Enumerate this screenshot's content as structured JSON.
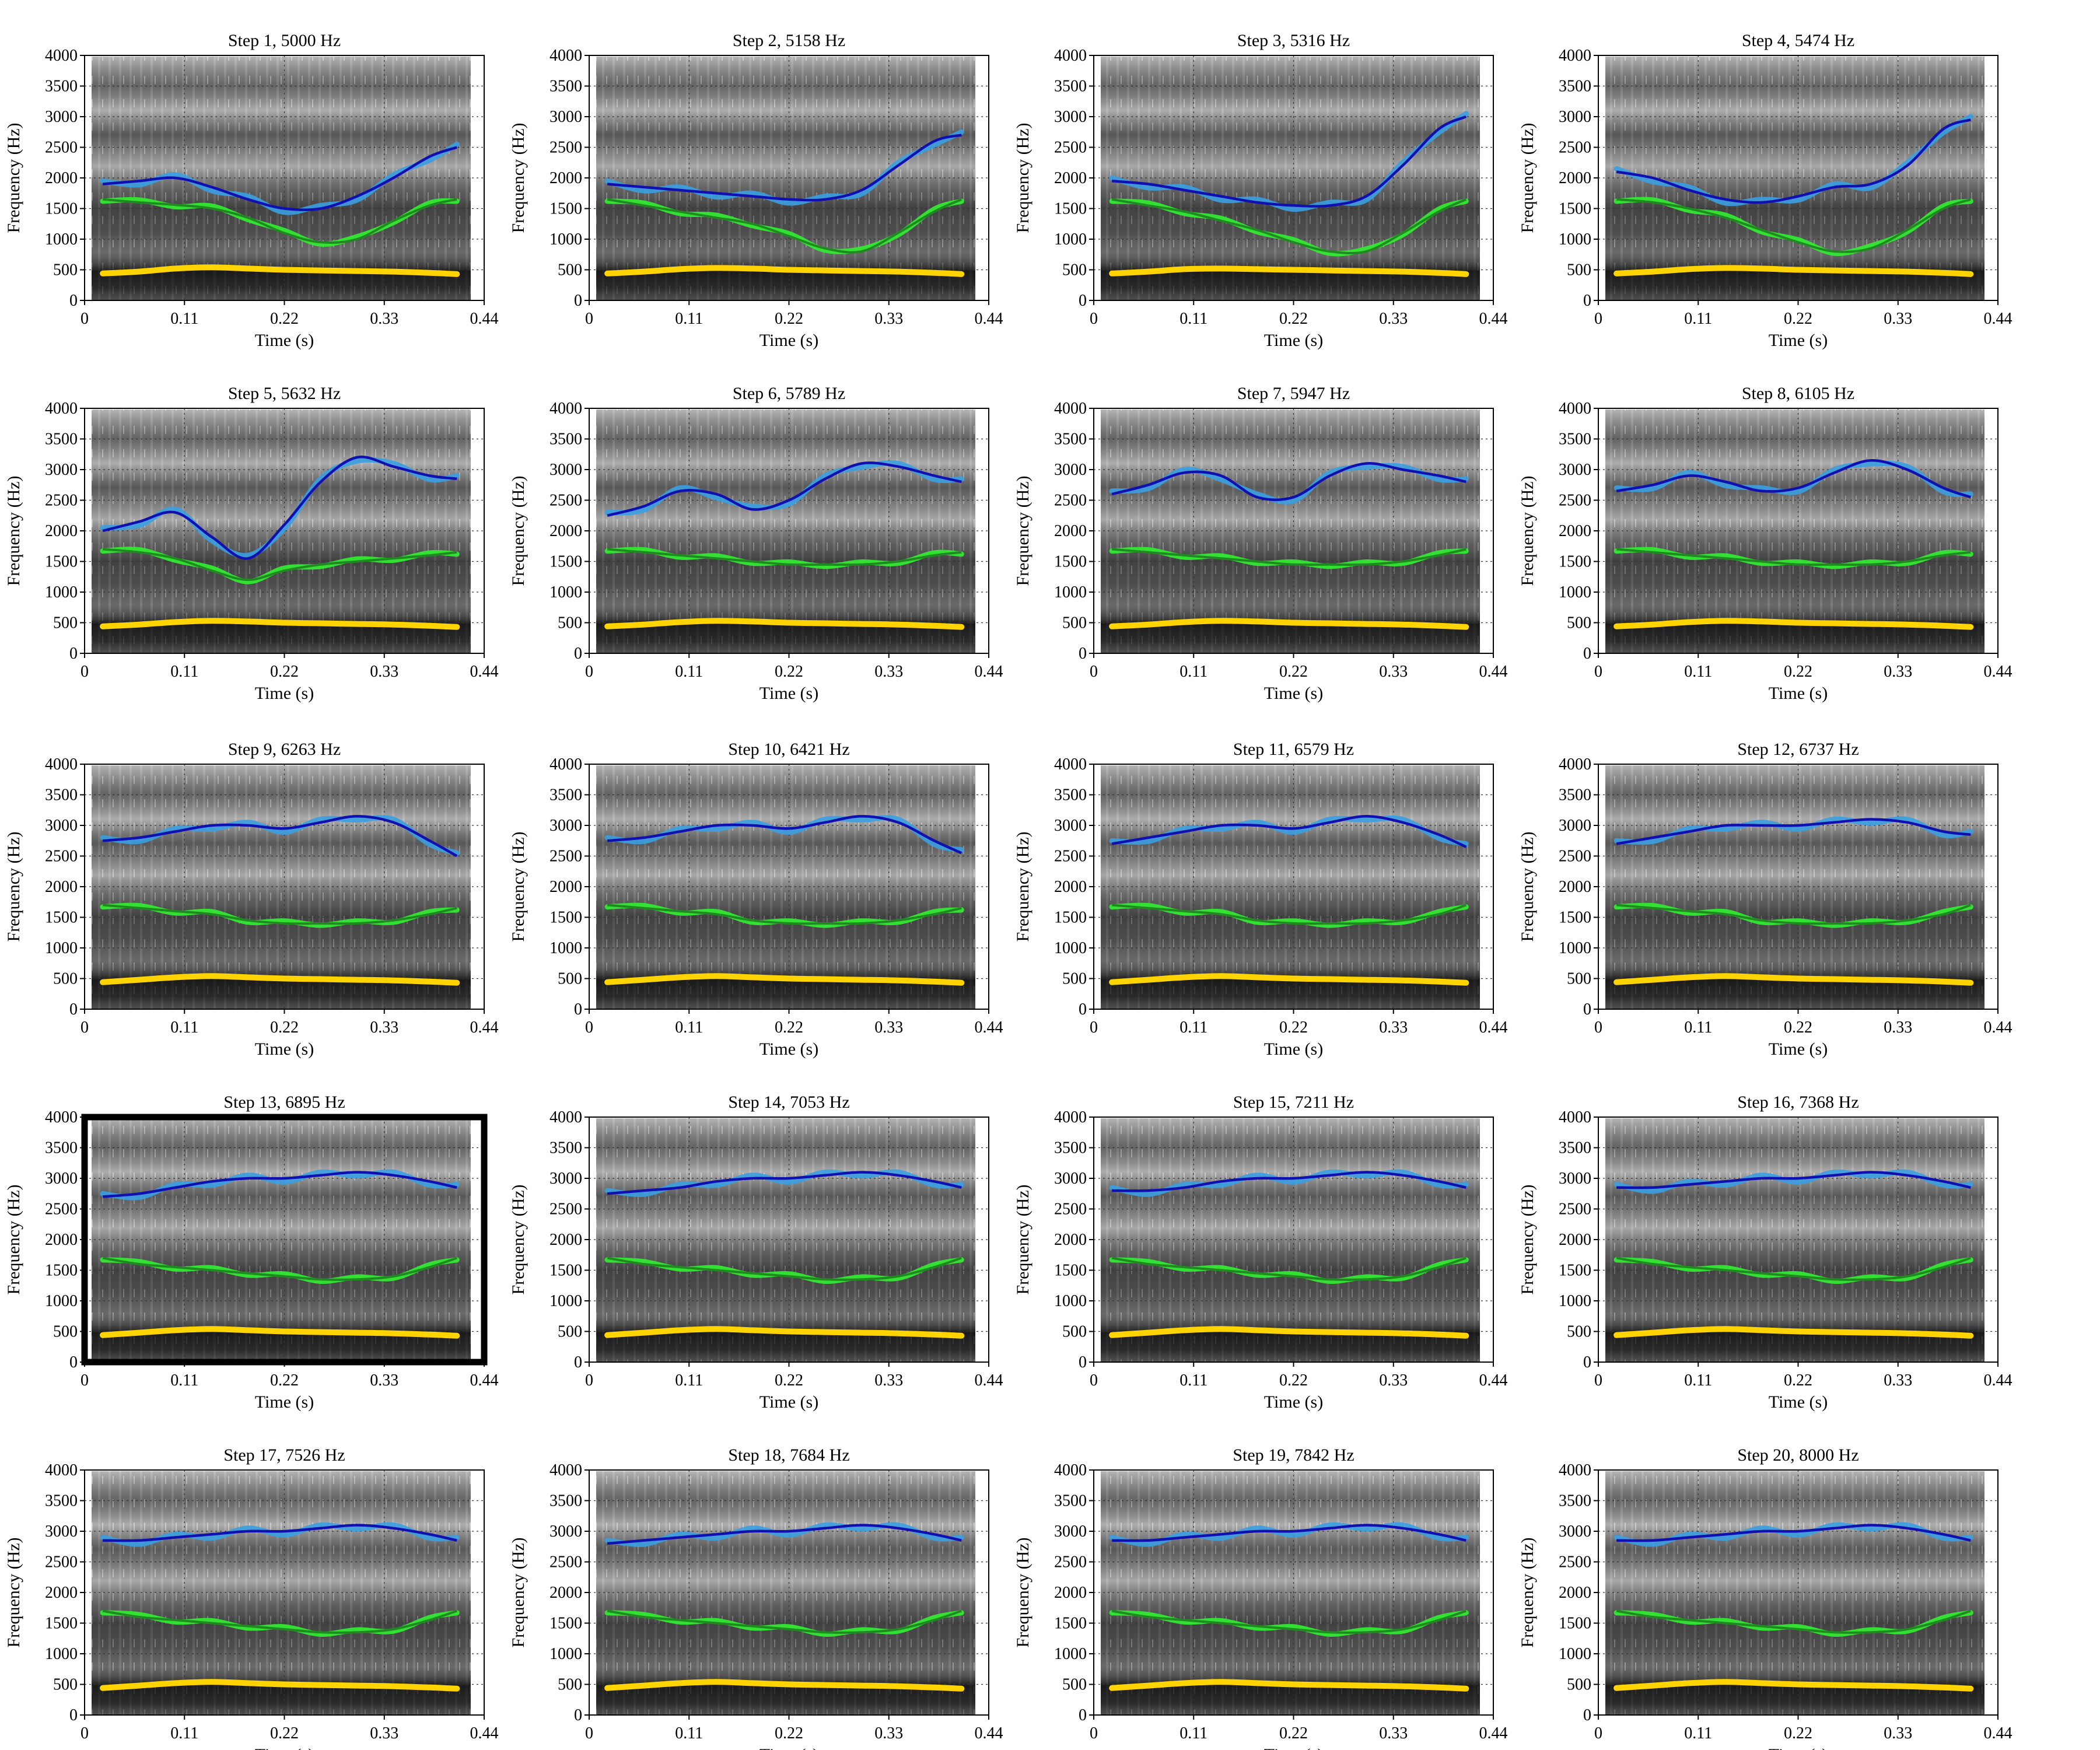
{
  "chart_data": {
    "type": "line",
    "description_axes": {
      "xlabel": "Time (s)",
      "ylabel": "Frequency (Hz)",
      "xlim": [
        0,
        0.44
      ],
      "ylim": [
        0,
        4000
      ],
      "xticks": [
        "0",
        "0.11",
        "0.22",
        "0.33",
        "0.44"
      ],
      "yticks": [
        "0",
        "500",
        "1000",
        "1500",
        "2000",
        "2500",
        "3000",
        "3500",
        "4000"
      ],
      "grid": true
    },
    "time": [
      0.02,
      0.06,
      0.1,
      0.14,
      0.18,
      0.22,
      0.26,
      0.3,
      0.34,
      0.38,
      0.41
    ],
    "selected_panel": 13,
    "colors": {
      "f1": "#ffd400",
      "f2_track": "#33e833",
      "f2_smooth": "#1f8a1f",
      "f3_track": "#3a9fe0",
      "f3_smooth": "#1010b0",
      "selected_frame": "#000000"
    },
    "panels": [
      {
        "title": "Step 1, 5000 Hz",
        "f1": [
          440,
          470,
          520,
          540,
          520,
          500,
          490,
          480,
          470,
          450,
          430
        ],
        "f2": [
          1650,
          1600,
          1560,
          1500,
          1350,
          1100,
          950,
          1000,
          1300,
          1550,
          1650
        ],
        "f3": [
          1900,
          1950,
          2000,
          1850,
          1650,
          1500,
          1500,
          1700,
          2000,
          2350,
          2500
        ]
      },
      {
        "title": "Step 2, 5158 Hz",
        "f1": [
          440,
          470,
          510,
          530,
          520,
          500,
          490,
          480,
          470,
          450,
          430
        ],
        "f2": [
          1650,
          1550,
          1450,
          1350,
          1250,
          1050,
          850,
          800,
          1100,
          1450,
          1650
        ],
        "f3": [
          1900,
          1850,
          1800,
          1750,
          1700,
          1650,
          1650,
          1800,
          2200,
          2600,
          2700
        ]
      },
      {
        "title": "Step 3, 5316 Hz",
        "f1": [
          440,
          470,
          510,
          520,
          510,
          500,
          490,
          480,
          470,
          450,
          430
        ],
        "f2": [
          1650,
          1550,
          1450,
          1300,
          1150,
          950,
          800,
          800,
          1100,
          1450,
          1650
        ],
        "f3": [
          1950,
          1900,
          1800,
          1700,
          1600,
          1550,
          1550,
          1700,
          2200,
          2800,
          3000
        ]
      },
      {
        "title": "Step 4, 5474 Hz",
        "f1": [
          440,
          470,
          510,
          530,
          520,
          500,
          490,
          480,
          470,
          450,
          430
        ],
        "f2": [
          1650,
          1600,
          1500,
          1350,
          1150,
          950,
          800,
          850,
          1150,
          1500,
          1650
        ],
        "f3": [
          2100,
          2000,
          1800,
          1650,
          1600,
          1700,
          1850,
          1900,
          2200,
          2800,
          2950
        ]
      },
      {
        "title": "Step 5, 5632 Hz",
        "f1": [
          440,
          470,
          510,
          530,
          520,
          500,
          490,
          480,
          470,
          450,
          430
        ],
        "f2": [
          1700,
          1650,
          1550,
          1350,
          1200,
          1350,
          1450,
          1500,
          1550,
          1600,
          1650
        ],
        "f3": [
          2000,
          2150,
          2300,
          1900,
          1550,
          2100,
          2800,
          3200,
          3050,
          2900,
          2850
        ]
      },
      {
        "title": "Step 6, 5789 Hz",
        "f1": [
          440,
          470,
          510,
          530,
          520,
          500,
          490,
          480,
          470,
          450,
          430
        ],
        "f2": [
          1700,
          1650,
          1600,
          1550,
          1500,
          1450,
          1450,
          1450,
          1500,
          1600,
          1650
        ],
        "f3": [
          2250,
          2400,
          2650,
          2600,
          2350,
          2500,
          2850,
          3100,
          3050,
          2900,
          2800
        ]
      },
      {
        "title": "Step 7, 5947 Hz",
        "f1": [
          440,
          470,
          510,
          530,
          520,
          500,
          490,
          480,
          470,
          450,
          430
        ],
        "f2": [
          1700,
          1650,
          1600,
          1550,
          1500,
          1450,
          1450,
          1450,
          1500,
          1600,
          1700
        ],
        "f3": [
          2600,
          2750,
          2950,
          2900,
          2550,
          2550,
          2900,
          3100,
          3000,
          2900,
          2800
        ]
      },
      {
        "title": "Step 8, 6105 Hz",
        "f1": [
          440,
          470,
          510,
          530,
          520,
          500,
          490,
          480,
          470,
          450,
          430
        ],
        "f2": [
          1700,
          1650,
          1600,
          1550,
          1500,
          1450,
          1450,
          1450,
          1500,
          1600,
          1650
        ],
        "f3": [
          2650,
          2750,
          2900,
          2800,
          2650,
          2700,
          2950,
          3150,
          3000,
          2700,
          2550
        ]
      },
      {
        "title": "Step 9, 6263 Hz",
        "f1": [
          440,
          480,
          520,
          540,
          520,
          500,
          490,
          480,
          470,
          450,
          430
        ],
        "f2": [
          1700,
          1650,
          1600,
          1550,
          1450,
          1400,
          1400,
          1400,
          1450,
          1550,
          1650
        ],
        "f3": [
          2750,
          2800,
          2900,
          3000,
          3000,
          2950,
          3050,
          3150,
          3050,
          2750,
          2500
        ]
      },
      {
        "title": "Step 10, 6421 Hz",
        "f1": [
          440,
          480,
          520,
          540,
          520,
          500,
          490,
          480,
          470,
          450,
          430
        ],
        "f2": [
          1700,
          1650,
          1600,
          1550,
          1450,
          1400,
          1400,
          1400,
          1450,
          1550,
          1650
        ],
        "f3": [
          2750,
          2800,
          2900,
          3000,
          3000,
          2950,
          3050,
          3150,
          3050,
          2750,
          2550
        ]
      },
      {
        "title": "Step 11, 6579 Hz",
        "f1": [
          440,
          480,
          520,
          540,
          520,
          500,
          490,
          480,
          470,
          450,
          430
        ],
        "f2": [
          1700,
          1650,
          1600,
          1550,
          1450,
          1400,
          1400,
          1400,
          1450,
          1550,
          1700
        ],
        "f3": [
          2700,
          2800,
          2900,
          3000,
          3000,
          2950,
          3050,
          3150,
          3050,
          2850,
          2650
        ]
      },
      {
        "title": "Step 12, 6737 Hz",
        "f1": [
          440,
          480,
          520,
          540,
          520,
          500,
          490,
          480,
          470,
          450,
          430
        ],
        "f2": [
          1700,
          1650,
          1600,
          1550,
          1450,
          1400,
          1400,
          1400,
          1450,
          1550,
          1700
        ],
        "f3": [
          2700,
          2800,
          2900,
          3000,
          3000,
          3000,
          3050,
          3100,
          3050,
          2900,
          2850
        ]
      },
      {
        "title": "Step 13, 6895 Hz",
        "f1": [
          440,
          480,
          520,
          540,
          520,
          500,
          490,
          480,
          470,
          450,
          430
        ],
        "f2": [
          1700,
          1600,
          1550,
          1500,
          1450,
          1400,
          1350,
          1350,
          1400,
          1550,
          1700
        ],
        "f3": [
          2700,
          2750,
          2850,
          2950,
          3000,
          3000,
          3050,
          3100,
          3050,
          2950,
          2850
        ]
      },
      {
        "title": "Step 14, 7053 Hz",
        "f1": [
          440,
          480,
          520,
          540,
          520,
          500,
          490,
          480,
          470,
          450,
          430
        ],
        "f2": [
          1700,
          1600,
          1550,
          1500,
          1450,
          1400,
          1350,
          1350,
          1400,
          1550,
          1700
        ],
        "f3": [
          2750,
          2800,
          2850,
          2950,
          3000,
          3000,
          3050,
          3100,
          3050,
          2950,
          2850
        ]
      },
      {
        "title": "Step 15, 7211 Hz",
        "f1": [
          440,
          480,
          520,
          540,
          520,
          500,
          490,
          480,
          470,
          450,
          430
        ],
        "f2": [
          1700,
          1600,
          1550,
          1500,
          1450,
          1400,
          1350,
          1350,
          1400,
          1550,
          1700
        ],
        "f3": [
          2800,
          2800,
          2850,
          2950,
          3000,
          3000,
          3050,
          3100,
          3050,
          2950,
          2850
        ]
      },
      {
        "title": "Step 16, 7368 Hz",
        "f1": [
          440,
          480,
          520,
          540,
          520,
          500,
          490,
          480,
          470,
          450,
          430
        ],
        "f2": [
          1700,
          1600,
          1550,
          1500,
          1450,
          1400,
          1350,
          1350,
          1400,
          1550,
          1700
        ],
        "f3": [
          2850,
          2850,
          2900,
          2950,
          3000,
          3000,
          3050,
          3100,
          3050,
          2950,
          2850
        ]
      },
      {
        "title": "Step 17, 7526 Hz",
        "f1": [
          440,
          480,
          520,
          540,
          520,
          500,
          490,
          480,
          470,
          450,
          430
        ],
        "f2": [
          1700,
          1600,
          1550,
          1500,
          1450,
          1400,
          1350,
          1350,
          1400,
          1550,
          1700
        ],
        "f3": [
          2850,
          2850,
          2900,
          2950,
          3000,
          3000,
          3050,
          3100,
          3050,
          2950,
          2850
        ]
      },
      {
        "title": "Step 18, 7684 Hz",
        "f1": [
          440,
          480,
          520,
          540,
          520,
          500,
          490,
          480,
          470,
          450,
          430
        ],
        "f2": [
          1700,
          1600,
          1550,
          1500,
          1450,
          1400,
          1350,
          1350,
          1400,
          1550,
          1700
        ],
        "f3": [
          2800,
          2850,
          2900,
          2950,
          3000,
          3000,
          3050,
          3100,
          3050,
          2950,
          2850
        ]
      },
      {
        "title": "Step 19, 7842 Hz",
        "f1": [
          440,
          480,
          520,
          540,
          520,
          500,
          490,
          480,
          470,
          450,
          430
        ],
        "f2": [
          1700,
          1600,
          1550,
          1500,
          1450,
          1400,
          1350,
          1350,
          1400,
          1550,
          1700
        ],
        "f3": [
          2850,
          2850,
          2900,
          2950,
          3000,
          3000,
          3050,
          3100,
          3050,
          2950,
          2850
        ]
      },
      {
        "title": "Step 20, 8000 Hz",
        "f1": [
          440,
          480,
          520,
          540,
          520,
          500,
          490,
          480,
          470,
          450,
          430
        ],
        "f2": [
          1700,
          1600,
          1550,
          1500,
          1450,
          1400,
          1350,
          1350,
          1400,
          1550,
          1700
        ],
        "f3": [
          2850,
          2850,
          2900,
          2950,
          3000,
          3000,
          3050,
          3100,
          3050,
          2950,
          2850
        ]
      }
    ]
  }
}
